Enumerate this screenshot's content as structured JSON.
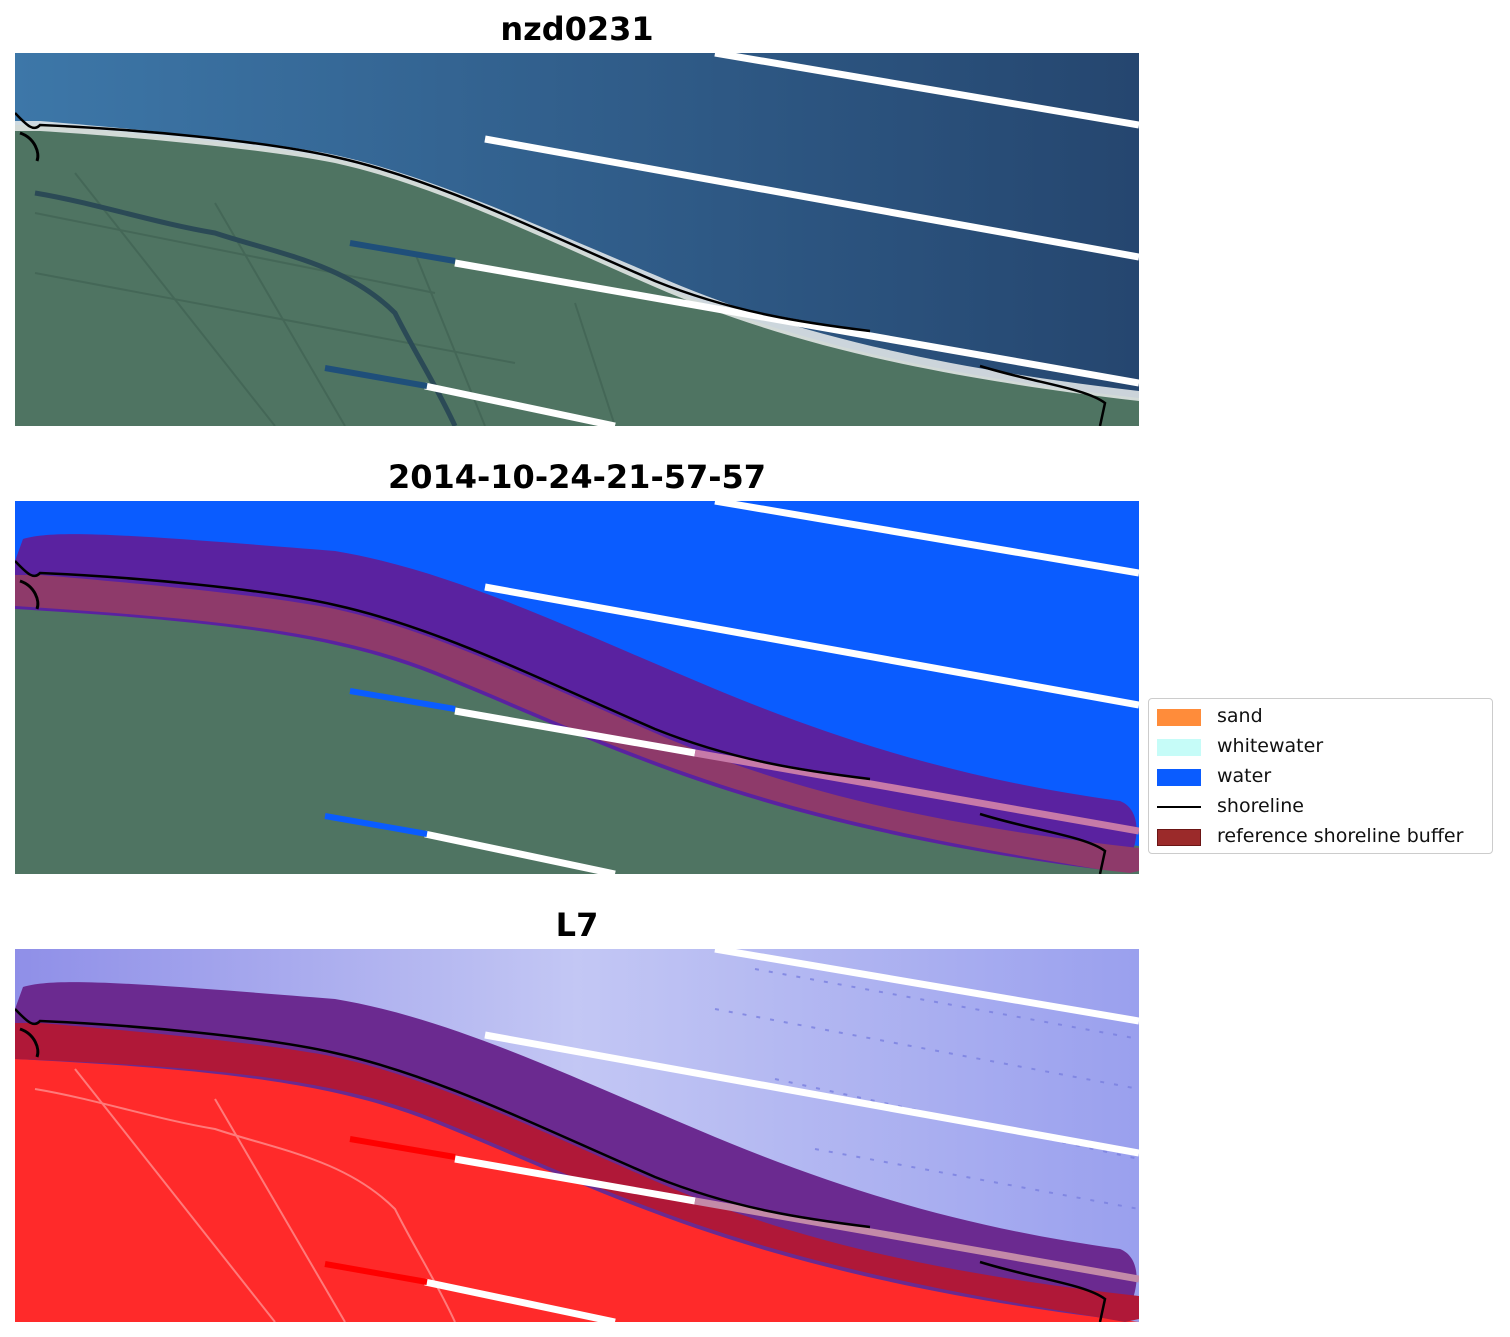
{
  "panels": [
    {
      "title": "nzd0231",
      "mode": "rgb"
    },
    {
      "title": "2014-10-24-21-57-57",
      "mode": "classified"
    },
    {
      "title": "L7",
      "mode": "index"
    }
  ],
  "legend": {
    "items": [
      {
        "label": "sand",
        "type": "patch",
        "color": "#ff8c3a"
      },
      {
        "label": "whitewater",
        "type": "patch",
        "color": "#c6fcf8"
      },
      {
        "label": "water",
        "type": "patch",
        "color": "#0a5cff"
      },
      {
        "label": "shoreline",
        "type": "line",
        "color": "#000000"
      },
      {
        "label": "reference shoreline buffer",
        "type": "patch",
        "color": "#9b2a2a",
        "edge": "#6b1515"
      }
    ]
  },
  "colors": {
    "ocean": "#2f5f90",
    "land": "#4f7462",
    "water_class": "#0a5cff",
    "buffer_sea": "#5a22a0",
    "buffer_land": "#8e3a6a",
    "index_water": "#b9bff2",
    "index_land": "#ff2a2a",
    "scanline_gap": "#ffffff"
  }
}
